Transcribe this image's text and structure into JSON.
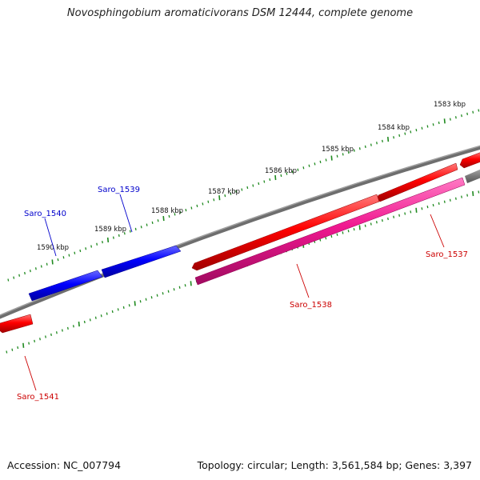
{
  "title": "Novosphingobium aromaticivorans DSM 12444, complete genome",
  "footer": {
    "accession": "Accession: NC_007794",
    "summary": "Topology: circular; Length: 3,561,584 bp; Genes: 3,397"
  },
  "colors": {
    "backbone": "#808080",
    "forward_gene": "#0000ff",
    "reverse_gene": "#ff0000",
    "rna_like_gene": "#ff1493",
    "tick": "#228b22",
    "gene_label_forward": "#0000cc",
    "gene_label_reverse": "#cc0000"
  },
  "scale_labels": [
    "1583 kbp",
    "1584 kbp",
    "1585 kbp",
    "1586 kbp",
    "1587 kbp",
    "1588 kbp",
    "1589 kbp",
    "1590 kbp"
  ],
  "gene_labels": [
    "Saro_1537",
    "Saro_1538",
    "Saro_1539",
    "Saro_1540",
    "Saro_1541"
  ]
}
